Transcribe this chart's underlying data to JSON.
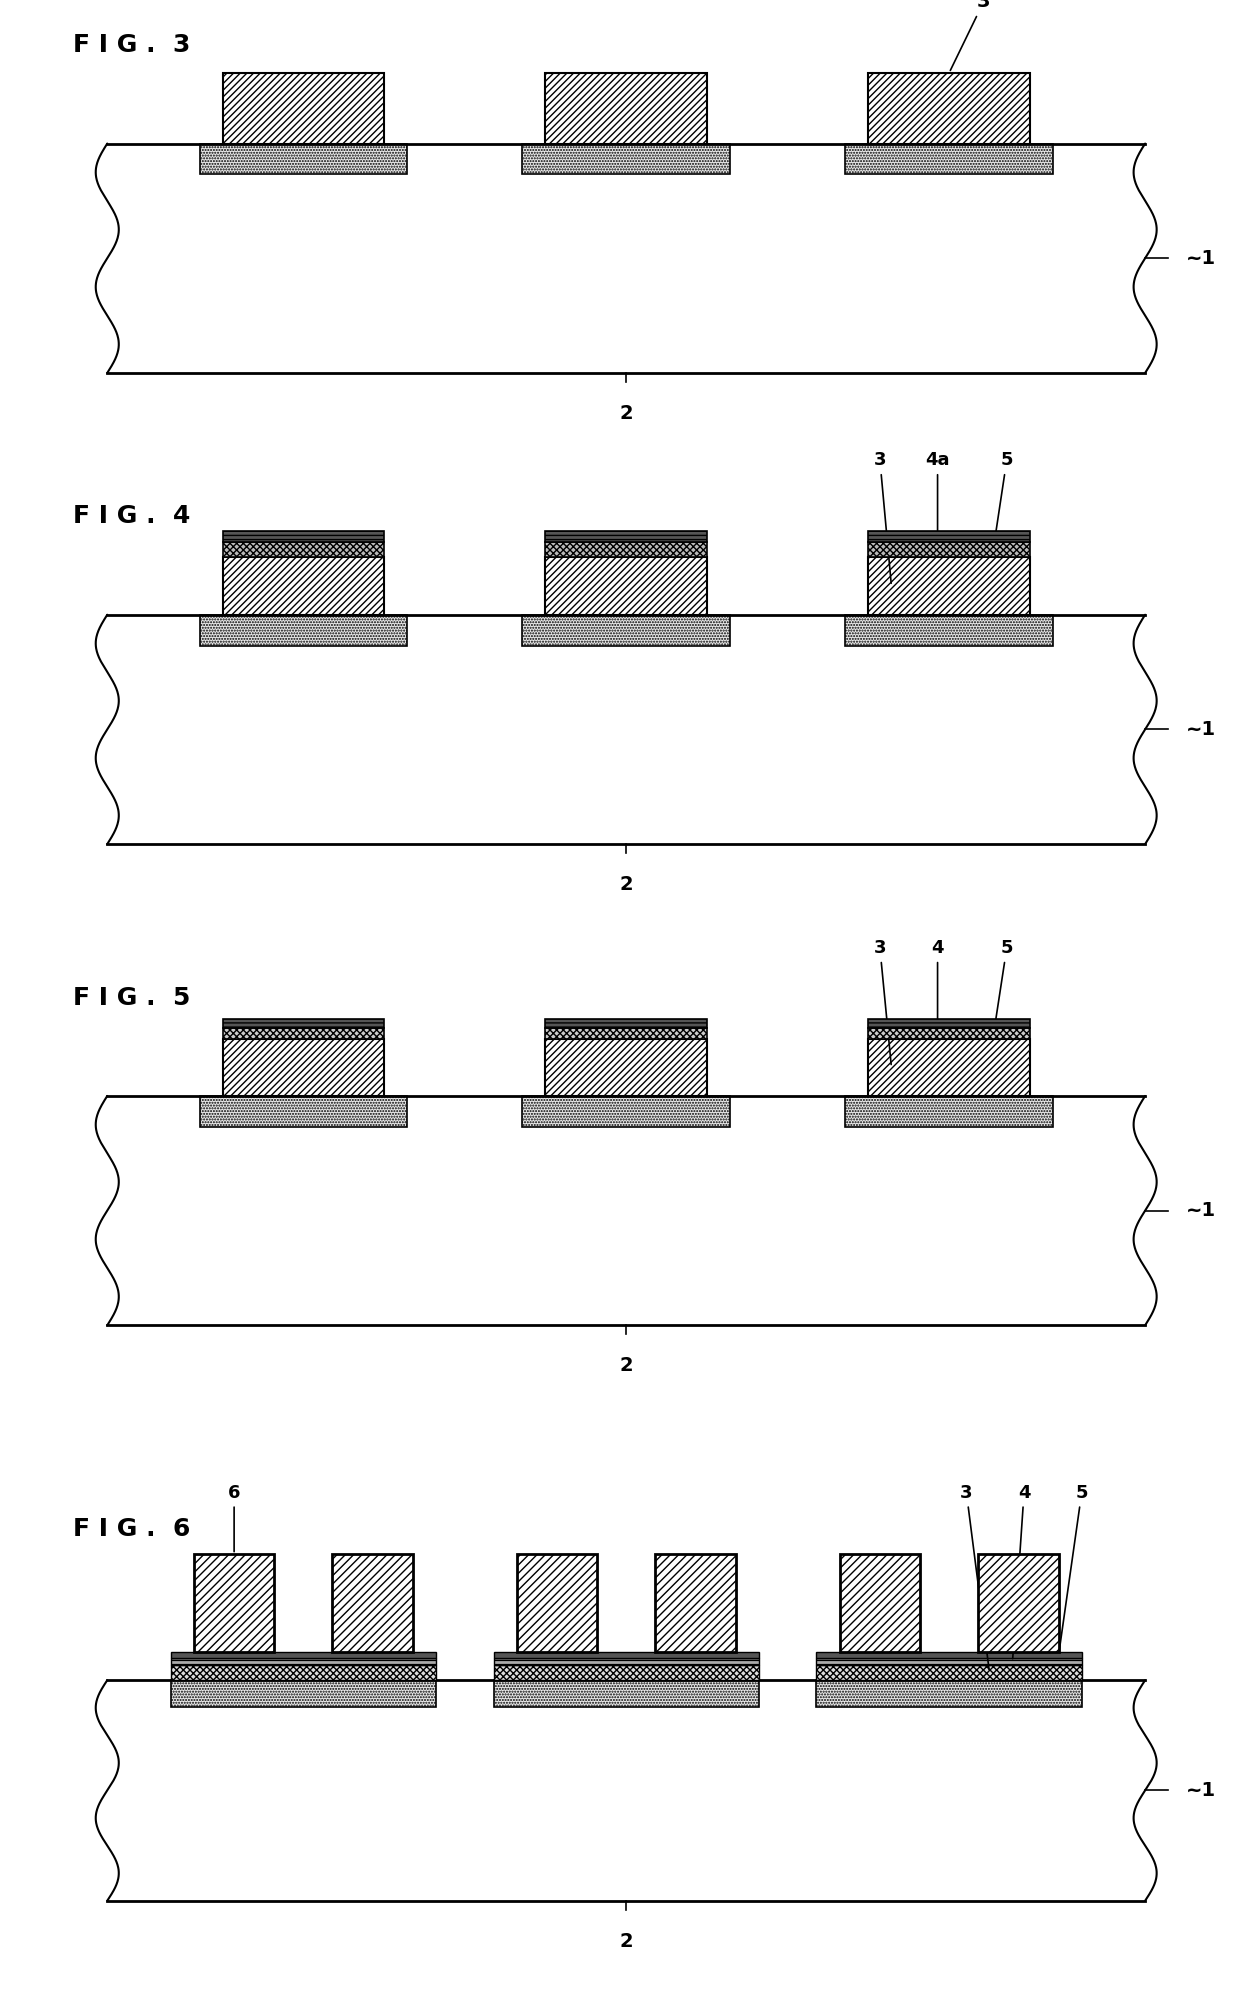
{
  "bg_color": "#ffffff",
  "lw_heavy": 2.0,
  "lw_med": 1.5,
  "lw_thin": 1.0,
  "fig3_label": "F I G .  3",
  "fig4_label": "F I G .  4",
  "fig5_label": "F I G .  5",
  "fig6_label": "F I G .  6",
  "label_fontsize": 18,
  "annot_fontsize": 14
}
